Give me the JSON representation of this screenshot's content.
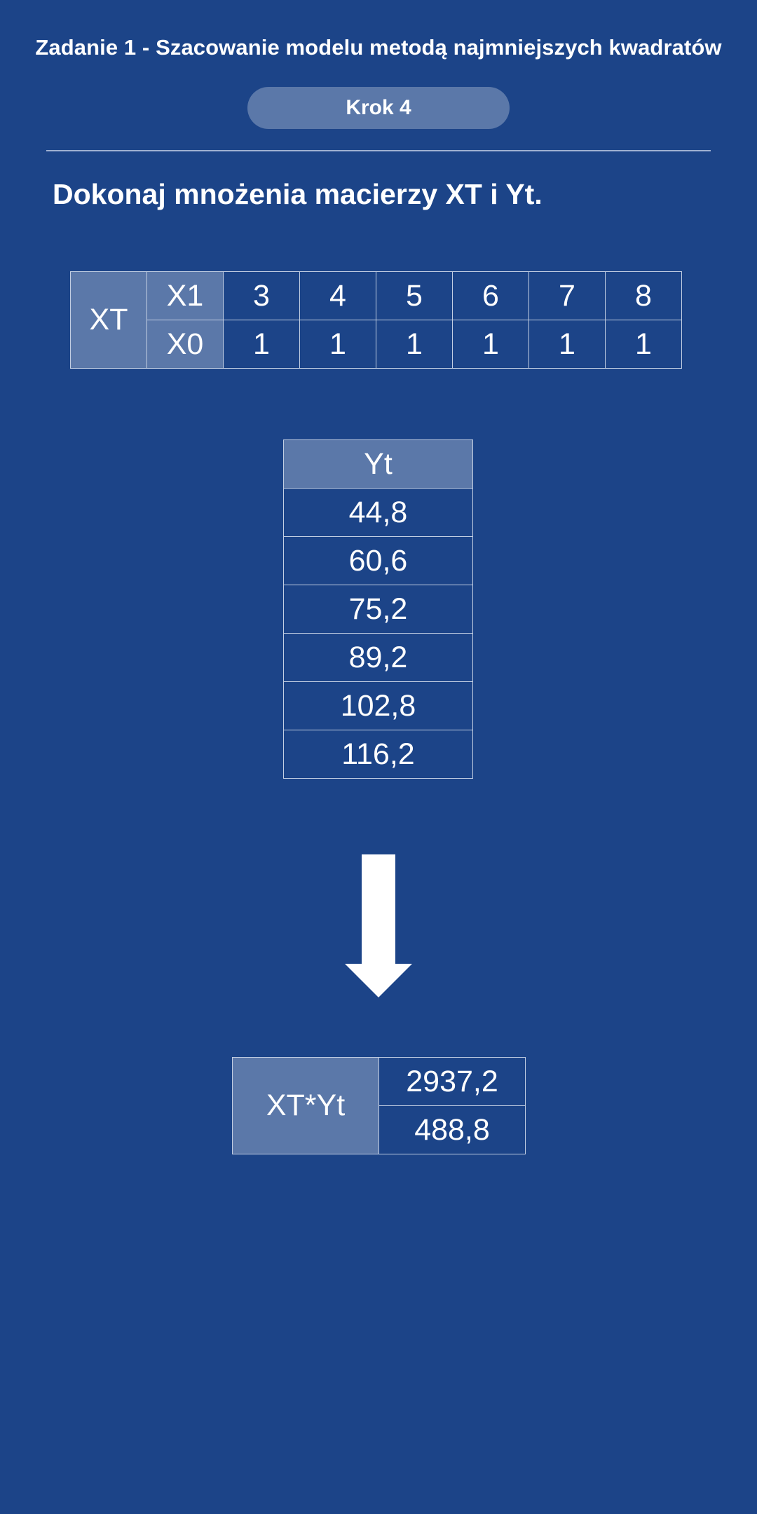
{
  "header": {
    "title": "Zadanie 1 - Szacowanie modelu metodą najmniejszych kwadratów",
    "step_label": "Krok 4"
  },
  "instruction": "Dokonaj mnożenia macierzy XT i Yt.",
  "xt_matrix": {
    "label": "XT",
    "rows": [
      {
        "label": "X1",
        "values": [
          "3",
          "4",
          "5",
          "6",
          "7",
          "8"
        ]
      },
      {
        "label": "X0",
        "values": [
          "1",
          "1",
          "1",
          "1",
          "1",
          "1"
        ]
      }
    ]
  },
  "yt_vector": {
    "label": "Yt",
    "values": [
      "44,8",
      "60,6",
      "75,2",
      "89,2",
      "102,8",
      "116,2"
    ]
  },
  "arrow_icon": "arrow-down-icon",
  "result": {
    "label": "XT*Yt",
    "values": [
      "2937,2",
      "488,8"
    ]
  },
  "colors": {
    "background": "#1c4488",
    "header_cell": "#5b78a9",
    "text": "#ffffff"
  }
}
